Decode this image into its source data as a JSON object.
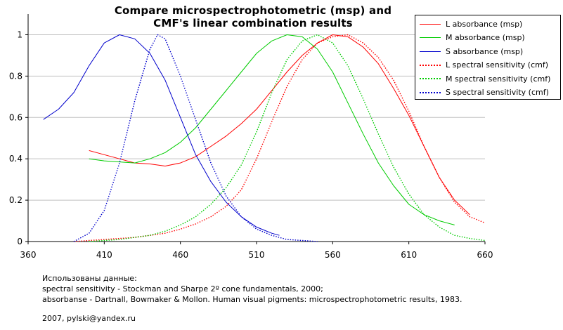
{
  "chart_data": {
    "type": "line",
    "title": [
      "Compare microspectrophotometric (msp) and",
      "CMF's linear combination results"
    ],
    "xlabel": "",
    "ylabel": "",
    "xlim": [
      360,
      660
    ],
    "ylim": [
      0,
      1.1
    ],
    "x_ticks": [
      360,
      410,
      460,
      510,
      560,
      610,
      660
    ],
    "x_tick_labels": [
      "360",
      "410",
      "460",
      "510",
      "560",
      "610",
      "660"
    ],
    "y_ticks": [
      0,
      0.2,
      0.4,
      0.6,
      0.8,
      1
    ],
    "y_tick_labels": [
      "0",
      "0.2",
      "0.4",
      "0.6",
      "0.8",
      "1"
    ],
    "grid": "horizontal",
    "legend_position": "top-right",
    "series": [
      {
        "name": "L absorbance (msp)",
        "color": "#ff0000",
        "style": "solid",
        "points": [
          [
            400,
            0.44
          ],
          [
            410,
            0.42
          ],
          [
            420,
            0.4
          ],
          [
            430,
            0.38
          ],
          [
            440,
            0.375
          ],
          [
            450,
            0.365
          ],
          [
            460,
            0.38
          ],
          [
            470,
            0.41
          ],
          [
            480,
            0.46
          ],
          [
            490,
            0.51
          ],
          [
            500,
            0.57
          ],
          [
            510,
            0.64
          ],
          [
            520,
            0.73
          ],
          [
            530,
            0.82
          ],
          [
            540,
            0.9
          ],
          [
            550,
            0.96
          ],
          [
            560,
            1.0
          ],
          [
            570,
            0.99
          ],
          [
            580,
            0.94
          ],
          [
            590,
            0.86
          ],
          [
            600,
            0.74
          ],
          [
            610,
            0.61
          ],
          [
            620,
            0.46
          ],
          [
            630,
            0.31
          ],
          [
            640,
            0.2
          ],
          [
            650,
            0.13
          ]
        ]
      },
      {
        "name": "M absorbance (msp)",
        "color": "#00cc00",
        "style": "solid",
        "points": [
          [
            400,
            0.4
          ],
          [
            410,
            0.39
          ],
          [
            420,
            0.385
          ],
          [
            430,
            0.38
          ],
          [
            440,
            0.4
          ],
          [
            450,
            0.43
          ],
          [
            460,
            0.48
          ],
          [
            470,
            0.55
          ],
          [
            480,
            0.64
          ],
          [
            490,
            0.73
          ],
          [
            500,
            0.82
          ],
          [
            510,
            0.91
          ],
          [
            520,
            0.97
          ],
          [
            530,
            1.0
          ],
          [
            540,
            0.99
          ],
          [
            550,
            0.93
          ],
          [
            560,
            0.82
          ],
          [
            570,
            0.67
          ],
          [
            580,
            0.52
          ],
          [
            590,
            0.38
          ],
          [
            600,
            0.27
          ],
          [
            610,
            0.18
          ],
          [
            620,
            0.13
          ],
          [
            630,
            0.1
          ],
          [
            640,
            0.08
          ]
        ]
      },
      {
        "name": "S absorbance (msp)",
        "color": "#0000cc",
        "style": "solid",
        "points": [
          [
            370,
            0.59
          ],
          [
            380,
            0.64
          ],
          [
            390,
            0.72
          ],
          [
            400,
            0.85
          ],
          [
            410,
            0.96
          ],
          [
            420,
            1.0
          ],
          [
            430,
            0.98
          ],
          [
            440,
            0.91
          ],
          [
            450,
            0.78
          ],
          [
            460,
            0.6
          ],
          [
            470,
            0.42
          ],
          [
            480,
            0.29
          ],
          [
            490,
            0.19
          ],
          [
            500,
            0.12
          ],
          [
            510,
            0.07
          ],
          [
            520,
            0.04
          ],
          [
            525,
            0.03
          ]
        ]
      },
      {
        "name": "L spectral sensitivity (cmf)",
        "color": "#ff0000",
        "style": "dotted",
        "points": [
          [
            390,
            0.0
          ],
          [
            400,
            0.005
          ],
          [
            410,
            0.01
          ],
          [
            420,
            0.015
          ],
          [
            430,
            0.02
          ],
          [
            440,
            0.03
          ],
          [
            450,
            0.04
          ],
          [
            460,
            0.06
          ],
          [
            470,
            0.085
          ],
          [
            480,
            0.12
          ],
          [
            490,
            0.17
          ],
          [
            500,
            0.25
          ],
          [
            510,
            0.4
          ],
          [
            520,
            0.58
          ],
          [
            530,
            0.75
          ],
          [
            540,
            0.88
          ],
          [
            550,
            0.96
          ],
          [
            560,
            0.99
          ],
          [
            570,
            1.0
          ],
          [
            580,
            0.96
          ],
          [
            590,
            0.89
          ],
          [
            600,
            0.78
          ],
          [
            610,
            0.63
          ],
          [
            620,
            0.46
          ],
          [
            630,
            0.31
          ],
          [
            640,
            0.19
          ],
          [
            650,
            0.12
          ],
          [
            660,
            0.09
          ]
        ]
      },
      {
        "name": "M spectral sensitivity (cmf)",
        "color": "#00cc00",
        "style": "dotted",
        "points": [
          [
            400,
            0.0
          ],
          [
            410,
            0.005
          ],
          [
            420,
            0.01
          ],
          [
            430,
            0.02
          ],
          [
            440,
            0.03
          ],
          [
            450,
            0.05
          ],
          [
            460,
            0.08
          ],
          [
            470,
            0.12
          ],
          [
            480,
            0.18
          ],
          [
            490,
            0.26
          ],
          [
            500,
            0.37
          ],
          [
            510,
            0.53
          ],
          [
            520,
            0.72
          ],
          [
            530,
            0.88
          ],
          [
            540,
            0.97
          ],
          [
            550,
            1.0
          ],
          [
            560,
            0.96
          ],
          [
            570,
            0.85
          ],
          [
            580,
            0.69
          ],
          [
            590,
            0.52
          ],
          [
            600,
            0.36
          ],
          [
            610,
            0.23
          ],
          [
            620,
            0.13
          ],
          [
            630,
            0.07
          ],
          [
            640,
            0.03
          ],
          [
            650,
            0.015
          ],
          [
            660,
            0.005
          ]
        ]
      },
      {
        "name": "S spectral sensitivity (cmf)",
        "color": "#0000cc",
        "style": "dotted",
        "points": [
          [
            390,
            0.0
          ],
          [
            400,
            0.04
          ],
          [
            410,
            0.15
          ],
          [
            420,
            0.38
          ],
          [
            430,
            0.68
          ],
          [
            440,
            0.93
          ],
          [
            445,
            1.0
          ],
          [
            450,
            0.98
          ],
          [
            460,
            0.8
          ],
          [
            470,
            0.59
          ],
          [
            480,
            0.38
          ],
          [
            490,
            0.22
          ],
          [
            500,
            0.12
          ],
          [
            510,
            0.06
          ],
          [
            520,
            0.03
          ],
          [
            530,
            0.01
          ],
          [
            540,
            0.005
          ],
          [
            550,
            0.0
          ]
        ]
      }
    ]
  },
  "notes": {
    "line1": "Использованы данные:",
    "line2": "spectral sensitivity - Stockman and Sharpe 2º cone fundamentals, 2000;",
    "line3": "absorbanse - Dartnall, Bowmaker & Mollon. Human visual pigments: microspectrophotometric results, 1983."
  },
  "footer": "2007, pylski@yandex.ru"
}
